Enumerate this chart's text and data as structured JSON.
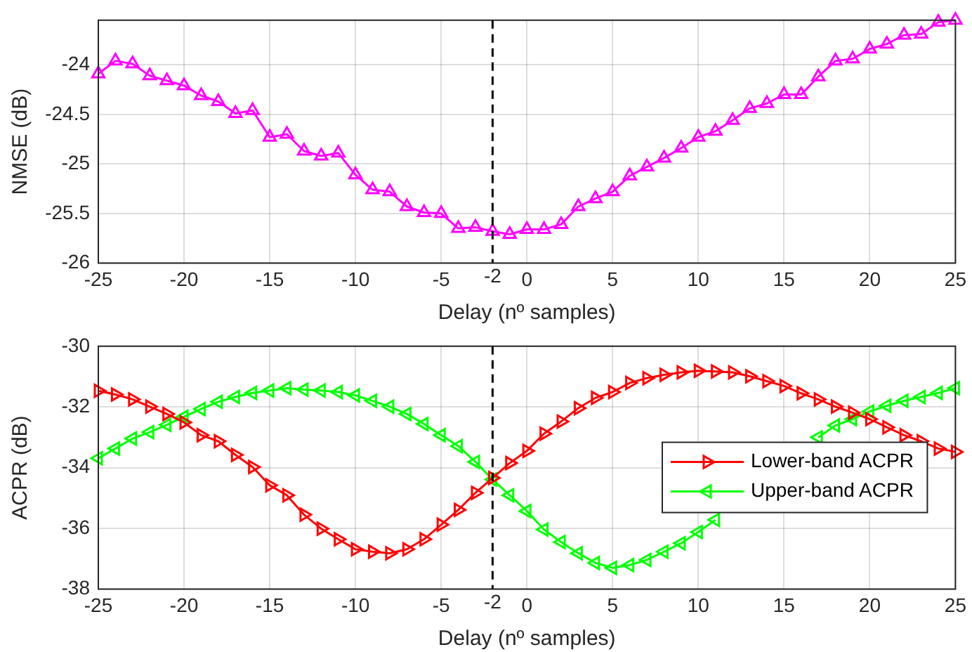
{
  "chart_data": [
    {
      "type": "line",
      "xlabel": "Delay (nº samples)",
      "ylabel": "NMSE (dB)",
      "x": [
        -25,
        -24,
        -23,
        -22,
        -21,
        -20,
        -19,
        -18,
        -17,
        -16,
        -15,
        -14,
        -13,
        -12,
        -11,
        -10,
        -9,
        -8,
        -7,
        -6,
        -5,
        -4,
        -3,
        -2,
        -1,
        0,
        1,
        2,
        3,
        4,
        5,
        6,
        7,
        8,
        9,
        10,
        11,
        12,
        13,
        14,
        15,
        16,
        17,
        18,
        19,
        20,
        21,
        22,
        23,
        24,
        25
      ],
      "series": [
        {
          "color": "#ff00ff",
          "values": [
            -24.09,
            -23.96,
            -23.99,
            -24.11,
            -24.16,
            -24.21,
            -24.31,
            -24.37,
            -24.49,
            -24.46,
            -24.73,
            -24.7,
            -24.87,
            -24.92,
            -24.89,
            -25.11,
            -25.26,
            -25.28,
            -25.43,
            -25.49,
            -25.5,
            -25.65,
            -25.64,
            -25.68,
            -25.71,
            -25.66,
            -25.66,
            -25.61,
            -25.43,
            -25.35,
            -25.28,
            -25.12,
            -25.03,
            -24.94,
            -24.84,
            -24.73,
            -24.67,
            -24.56,
            -24.44,
            -24.39,
            -24.3,
            -24.3,
            -24.12,
            -23.96,
            -23.94,
            -23.84,
            -23.79,
            -23.7,
            -23.69,
            -23.57,
            -23.55
          ]
        }
      ],
      "xlim": [
        -25,
        25
      ],
      "xticks": [
        -25,
        -20,
        -15,
        -10,
        -5,
        0,
        5,
        10,
        15,
        20,
        25
      ],
      "ylim": [
        -26,
        -23.55
      ],
      "yticks": [
        -26,
        -25.5,
        -25,
        -24.5,
        -24
      ],
      "grid": true,
      "marker": "triangle",
      "line_style": "solid",
      "ref_lines": [
        {
          "axis": "x",
          "value": -2,
          "label": "-2",
          "color": "#000000",
          "line_style": "dashed"
        }
      ]
    },
    {
      "type": "line",
      "xlabel": "Delay (nº samples)",
      "ylabel": "ACPR (dB)",
      "x": [
        -25,
        -24,
        -23,
        -22,
        -21,
        -20,
        -19,
        -18,
        -17,
        -16,
        -15,
        -14,
        -13,
        -12,
        -11,
        -10,
        -9,
        -8,
        -7,
        -6,
        -5,
        -4,
        -3,
        -2,
        -1,
        0,
        1,
        2,
        3,
        4,
        5,
        6,
        7,
        8,
        9,
        10,
        11,
        12,
        13,
        14,
        15,
        16,
        17,
        18,
        19,
        20,
        21,
        22,
        23,
        24,
        25
      ],
      "series": [
        {
          "name": "Lower-band ACPR",
          "color": "#ff0000",
          "values": [
            -31.47,
            -31.59,
            -31.75,
            -31.99,
            -32.23,
            -32.51,
            -32.93,
            -33.13,
            -33.58,
            -33.98,
            -34.58,
            -34.91,
            -35.55,
            -36.01,
            -36.36,
            -36.69,
            -36.77,
            -36.82,
            -36.69,
            -36.36,
            -35.88,
            -35.39,
            -34.83,
            -34.34,
            -33.85,
            -33.45,
            -32.88,
            -32.48,
            -32.04,
            -31.7,
            -31.51,
            -31.21,
            -31.05,
            -30.94,
            -30.86,
            -30.81,
            -30.83,
            -30.86,
            -30.99,
            -31.15,
            -31.31,
            -31.55,
            -31.75,
            -31.99,
            -32.19,
            -32.4,
            -32.67,
            -32.93,
            -33.13,
            -33.37,
            -33.48
          ]
        },
        {
          "name": "Upper-band ACPR",
          "color": "#00ff00",
          "values": [
            -33.69,
            -33.37,
            -33.04,
            -32.83,
            -32.59,
            -32.32,
            -32.07,
            -31.83,
            -31.67,
            -31.54,
            -31.46,
            -31.38,
            -31.43,
            -31.46,
            -31.51,
            -31.62,
            -31.8,
            -31.99,
            -32.23,
            -32.56,
            -32.93,
            -33.29,
            -33.81,
            -34.39,
            -34.91,
            -35.43,
            -36.04,
            -36.45,
            -36.82,
            -37.14,
            -37.3,
            -37.21,
            -37.04,
            -36.77,
            -36.49,
            -36.12,
            -35.72,
            null,
            null,
            null,
            null,
            null,
            -33.0,
            -32.61,
            -32.4,
            -32.15,
            -31.96,
            -31.8,
            -31.67,
            -31.54,
            -31.38
          ]
        }
      ],
      "xlim": [
        -25,
        25
      ],
      "xticks": [
        -25,
        -20,
        -15,
        -10,
        -5,
        0,
        5,
        10,
        15,
        20,
        25
      ],
      "ylim": [
        -38,
        -30
      ],
      "yticks": [
        -38,
        -36,
        -34,
        -32,
        -30
      ],
      "grid": true,
      "marker": "triangle",
      "line_style": "solid",
      "legend": "right",
      "ref_lines": [
        {
          "axis": "x",
          "value": -2,
          "label": "-2",
          "color": "#000000",
          "line_style": "dashed"
        }
      ]
    }
  ]
}
